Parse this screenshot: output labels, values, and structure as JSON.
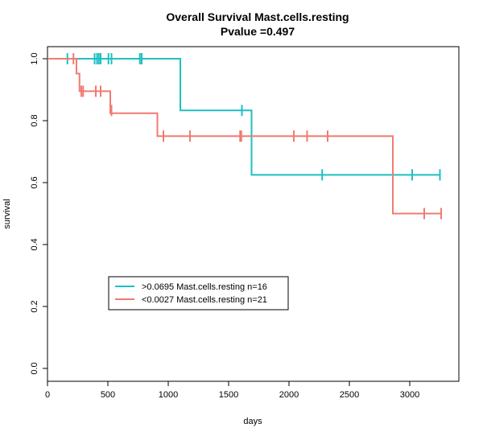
{
  "chart_data": {
    "type": "line",
    "title": "Overall Survival Mast.cells.resting",
    "subtitle": "Pvalue =0.497",
    "xlabel": "days",
    "ylabel": "survival",
    "xlim": [
      0,
      3300
    ],
    "ylim": [
      0,
      1.0
    ],
    "x_ticks": [
      0,
      500,
      1000,
      1500,
      2000,
      2500,
      3000
    ],
    "y_ticks": [
      0.0,
      0.2,
      0.4,
      0.6,
      0.8,
      1.0
    ],
    "y_tick_labels": [
      "0.0",
      "0.2",
      "0.4",
      "0.6",
      "0.8",
      "1.0"
    ],
    "grid": false,
    "legend_position": "bottom-left",
    "series": [
      {
        "name": ">0.0695 Mast.cells.resting n=16",
        "color": "#1fbfc3",
        "steps": [
          [
            0,
            1.0
          ],
          [
            1100,
            0.833
          ],
          [
            1690,
            0.625
          ],
          [
            3250,
            0.625
          ]
        ],
        "censor": [
          [
            165,
            1.0
          ],
          [
            390,
            1.0
          ],
          [
            410,
            1.0
          ],
          [
            425,
            1.0
          ],
          [
            440,
            1.0
          ],
          [
            505,
            1.0
          ],
          [
            530,
            1.0
          ],
          [
            765,
            1.0
          ],
          [
            780,
            1.0
          ],
          [
            1610,
            0.833
          ],
          [
            2275,
            0.625
          ],
          [
            3020,
            0.625
          ],
          [
            3250,
            0.625
          ]
        ]
      },
      {
        "name": "<0.0027 Mast.cells.resting n=21",
        "color": "#f07b72",
        "steps": [
          [
            0,
            1.0
          ],
          [
            240,
            0.952
          ],
          [
            265,
            0.895
          ],
          [
            520,
            0.824
          ],
          [
            910,
            0.75
          ],
          [
            2860,
            0.5
          ],
          [
            3260,
            0.5
          ]
        ],
        "censor": [
          [
            215,
            1.0
          ],
          [
            280,
            0.895
          ],
          [
            295,
            0.895
          ],
          [
            400,
            0.895
          ],
          [
            440,
            0.895
          ],
          [
            530,
            0.833
          ],
          [
            960,
            0.75
          ],
          [
            1180,
            0.75
          ],
          [
            1595,
            0.75
          ],
          [
            1605,
            0.75
          ],
          [
            2040,
            0.75
          ],
          [
            2150,
            0.75
          ],
          [
            2320,
            0.75
          ],
          [
            3120,
            0.5
          ],
          [
            3260,
            0.5
          ]
        ]
      }
    ]
  }
}
